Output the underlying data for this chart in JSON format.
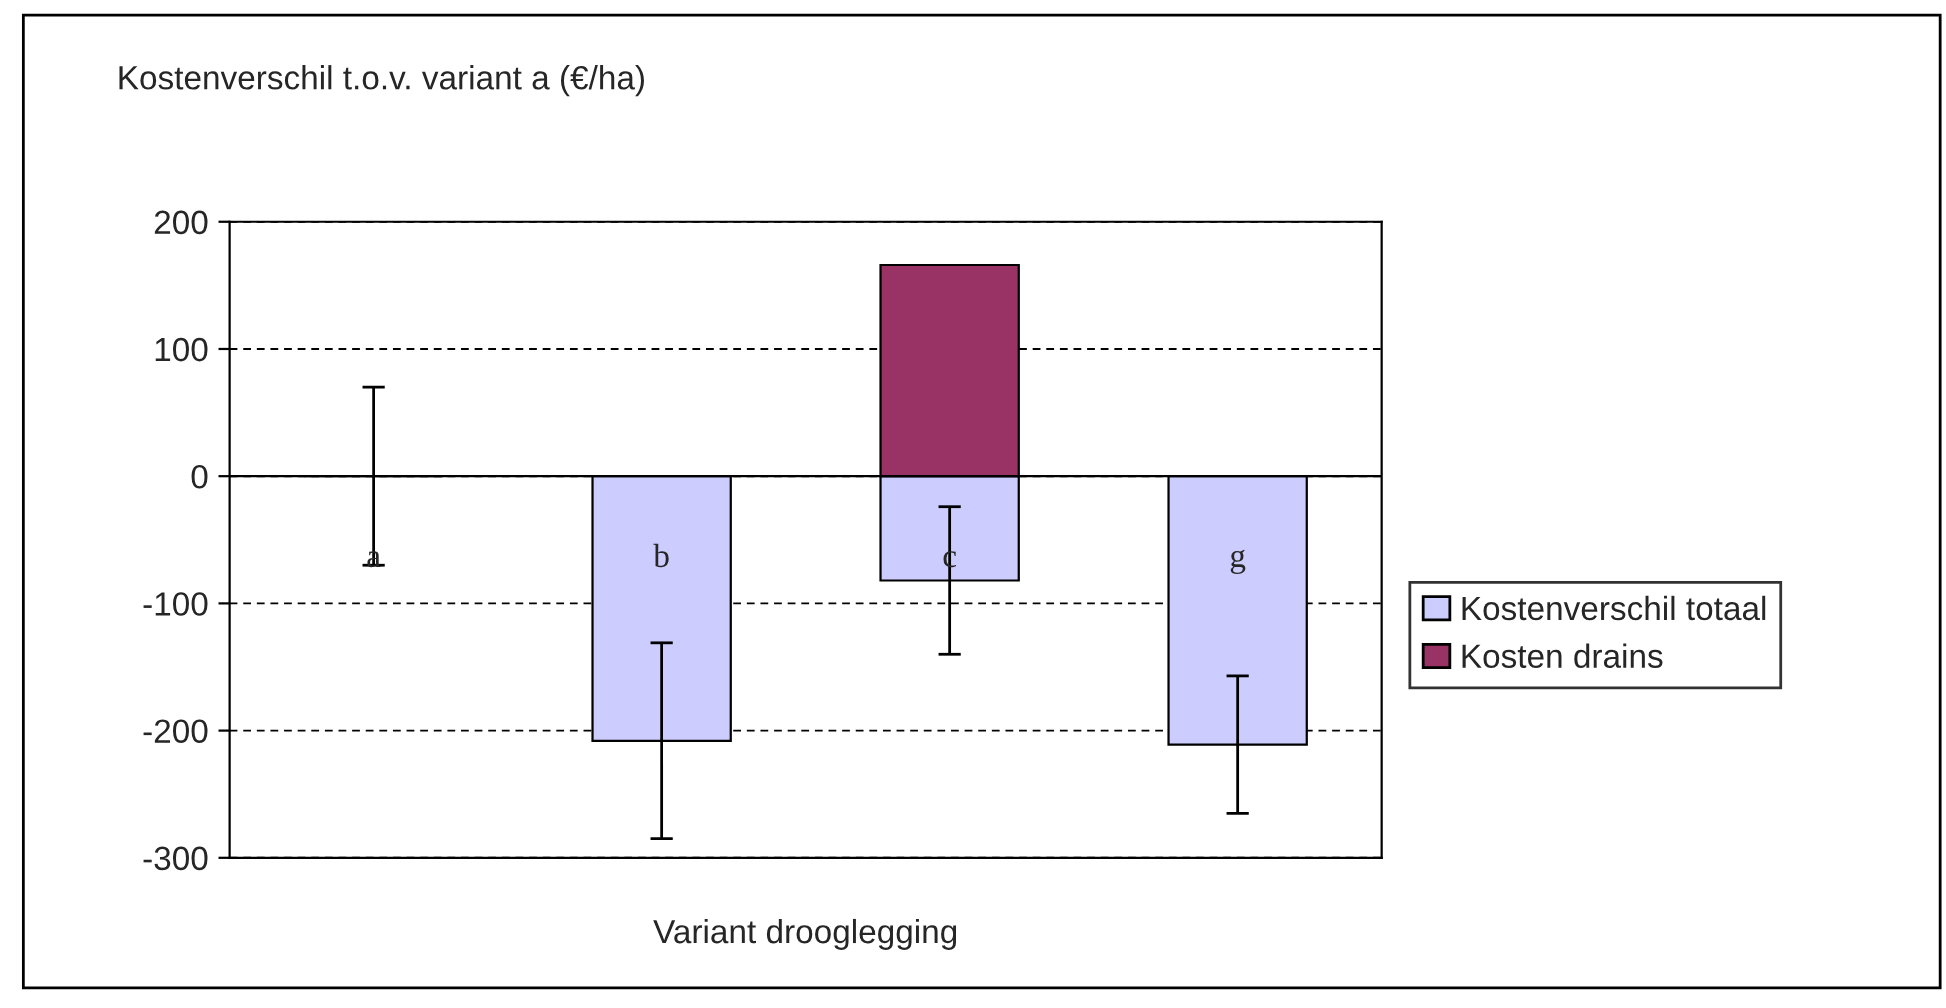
{
  "chart_data": {
    "type": "bar",
    "ylabel": "Kostenverschil t.o.v. variant a (€/ha)",
    "xlabel": "Variant drooglegging",
    "categories": [
      "a",
      "b",
      "c",
      "g"
    ],
    "stacked": true,
    "series": [
      {
        "name": "Kostenverschil totaal",
        "color": "#ccccff",
        "values": [
          0,
          -208,
          -82,
          -211
        ],
        "errors": [
          70,
          77,
          58,
          54
        ]
      },
      {
        "name": "Kosten drains",
        "color": "#993366",
        "values": [
          null,
          null,
          166,
          null
        ]
      }
    ],
    "ylim": [
      -300,
      200
    ],
    "yticks": [
      -300,
      -200,
      -100,
      0,
      100,
      200
    ],
    "grid": "y",
    "legend": "right"
  }
}
